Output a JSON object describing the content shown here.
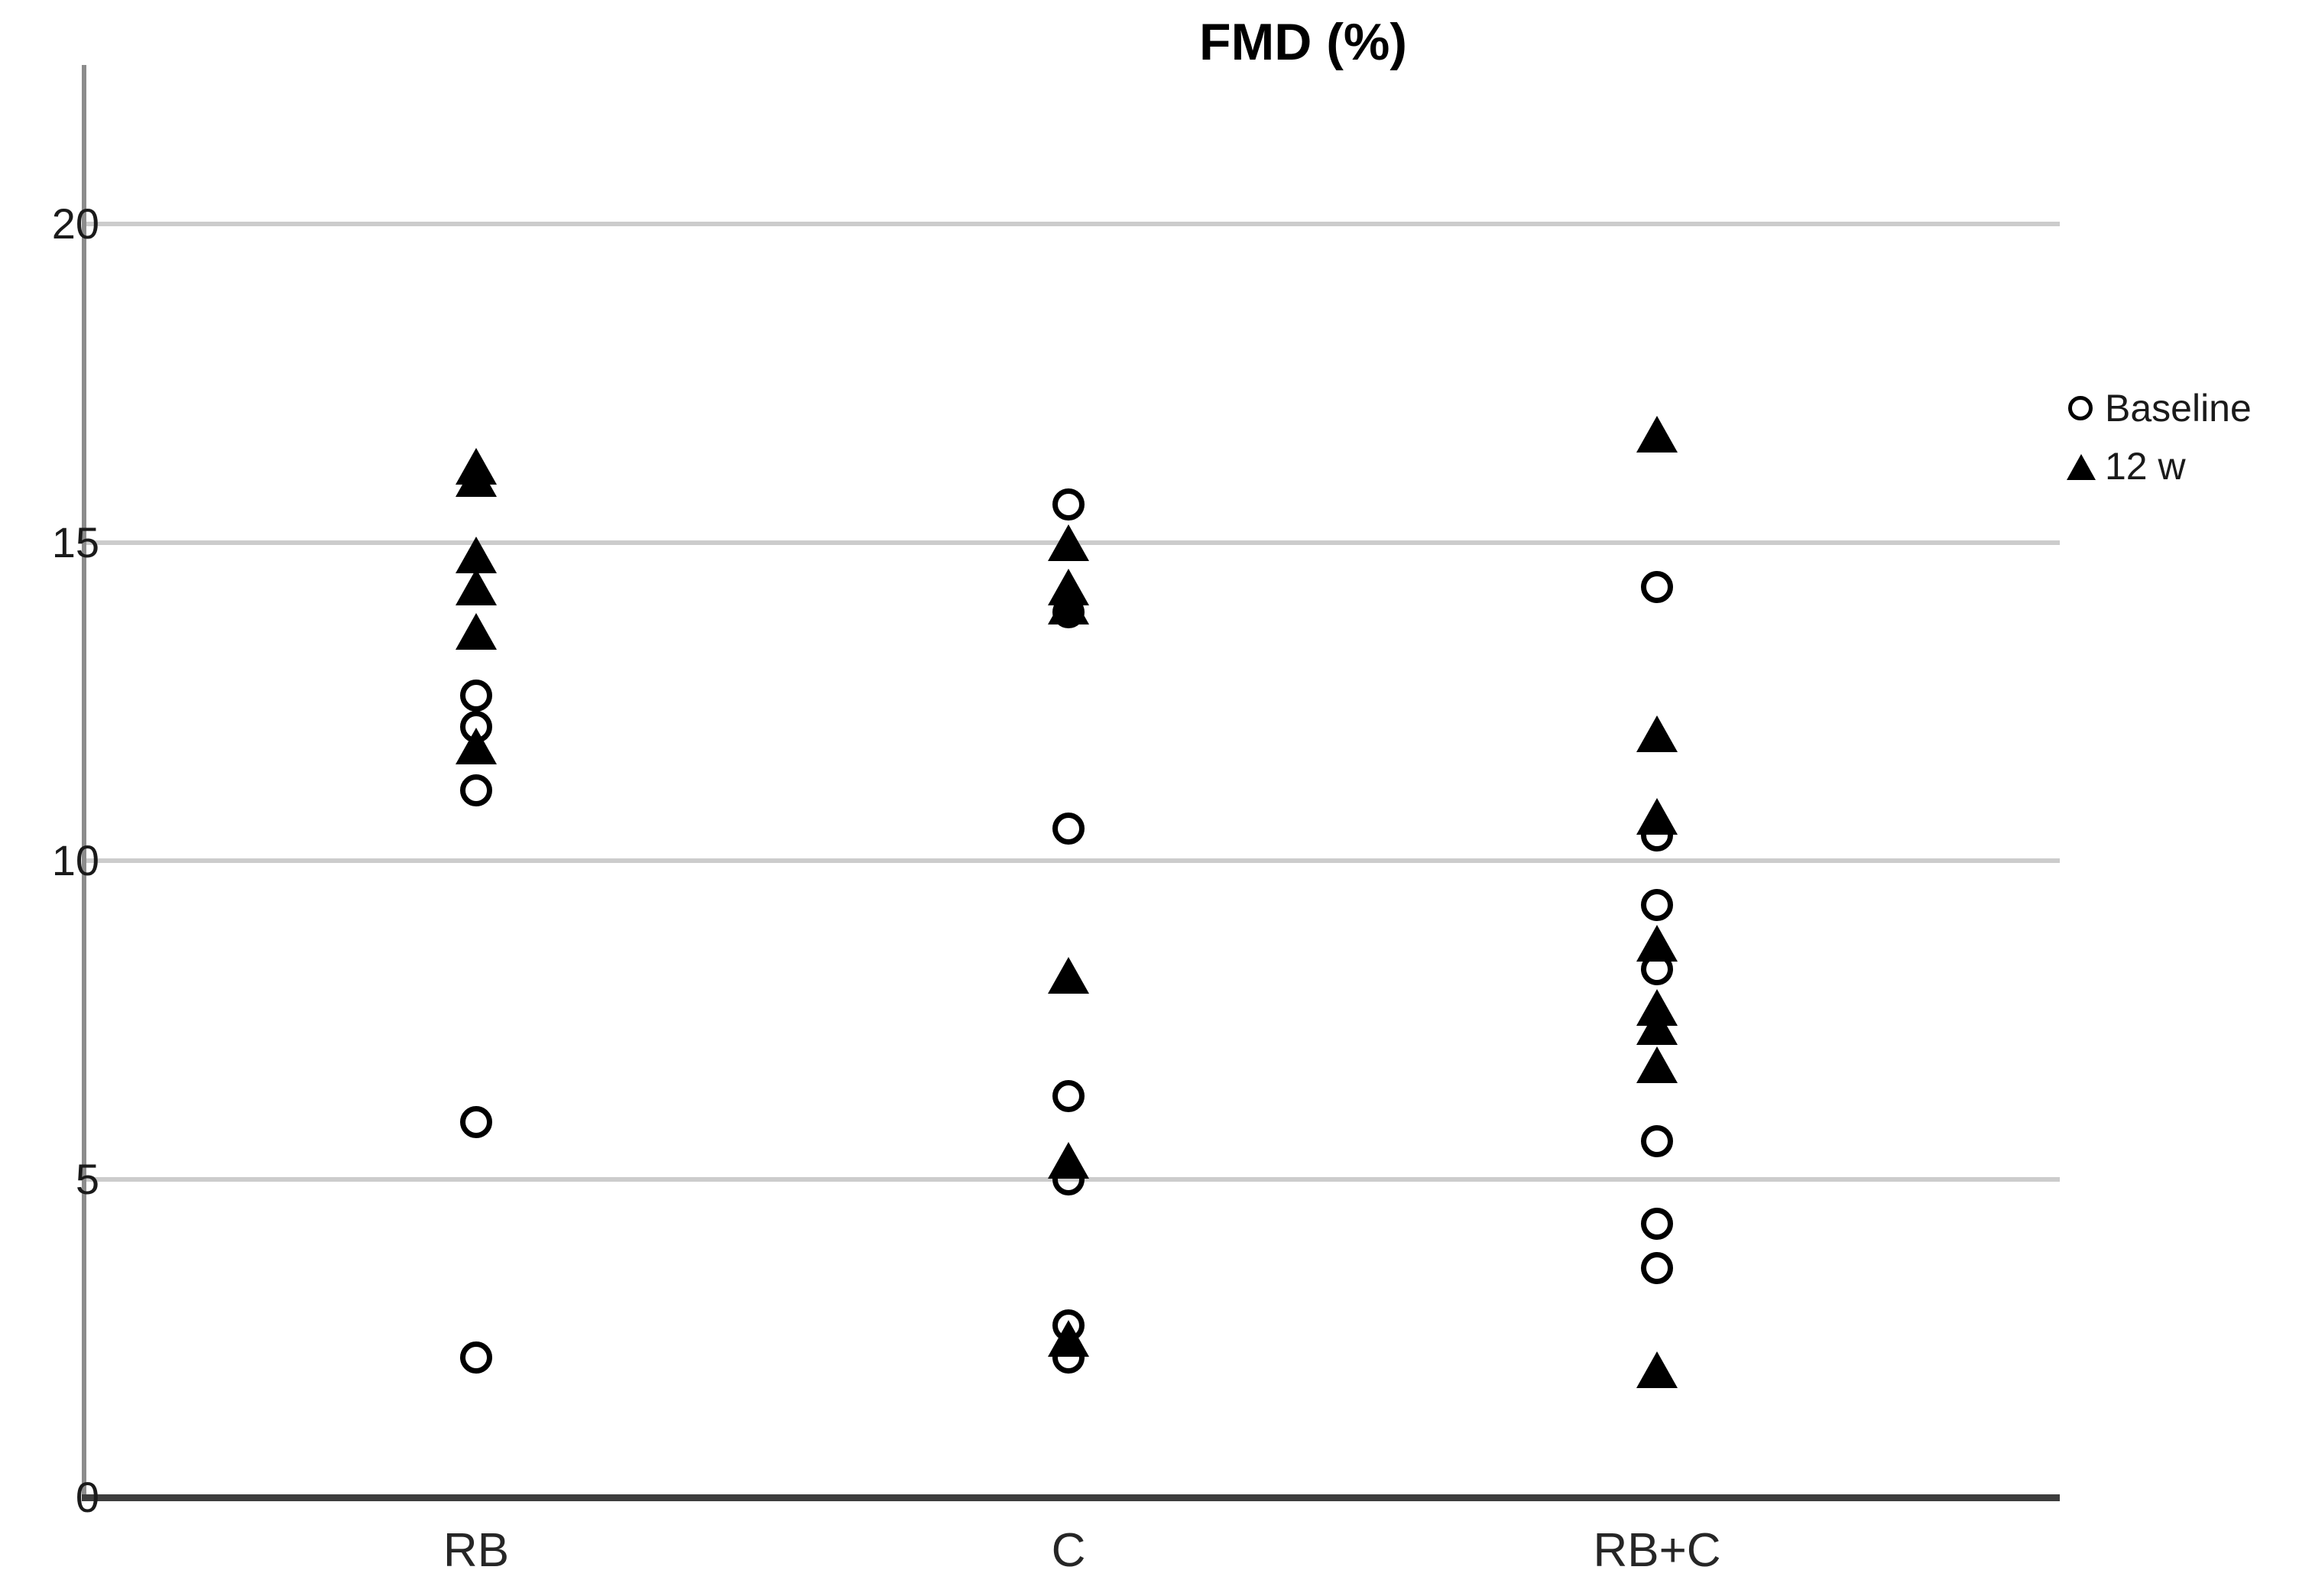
{
  "chart_data": {
    "type": "scatter",
    "title": "FMD (%)",
    "xlabel": "",
    "ylabel": "",
    "categories": [
      "RB",
      "C",
      "RB+C"
    ],
    "y_axis": {
      "ticks": [
        0,
        5,
        10,
        15,
        20
      ],
      "gridlines": [
        5,
        10,
        15,
        20
      ],
      "range": [
        0,
        22.5
      ]
    },
    "legend": [
      {
        "label": "Baseline",
        "marker": "circle"
      },
      {
        "label": "12 w",
        "marker": "triangle"
      }
    ],
    "legend_position": "right",
    "grid": "horizontal-only",
    "series": [
      {
        "name": "Baseline",
        "marker": "circle",
        "values": {
          "RB": [
            12.6,
            12.1,
            11.1,
            5.9,
            2.2
          ],
          "C": [
            15.6,
            13.9,
            10.5,
            6.3,
            5.0,
            2.7,
            2.2
          ],
          "RB+C": [
            14.3,
            10.4,
            9.3,
            8.3,
            5.6,
            4.3,
            3.6
          ]
        }
      },
      {
        "name": "12 w",
        "marker": "triangle",
        "values": {
          "RB": [
            16.2,
            16.0,
            14.8,
            14.3,
            13.6,
            11.8
          ],
          "C": [
            15.0,
            14.3,
            14.0,
            8.2,
            5.3,
            2.5
          ],
          "RB+C": [
            16.7,
            12.0,
            10.7,
            8.7,
            7.7,
            7.4,
            6.8,
            2.0
          ]
        }
      }
    ],
    "colors": {
      "marker": "#000000",
      "gridline": "#cccccc",
      "y_axis_line": "#8c8c8c",
      "x_axis_line": "#3d3d3d",
      "text": "#1a1a1a"
    }
  }
}
